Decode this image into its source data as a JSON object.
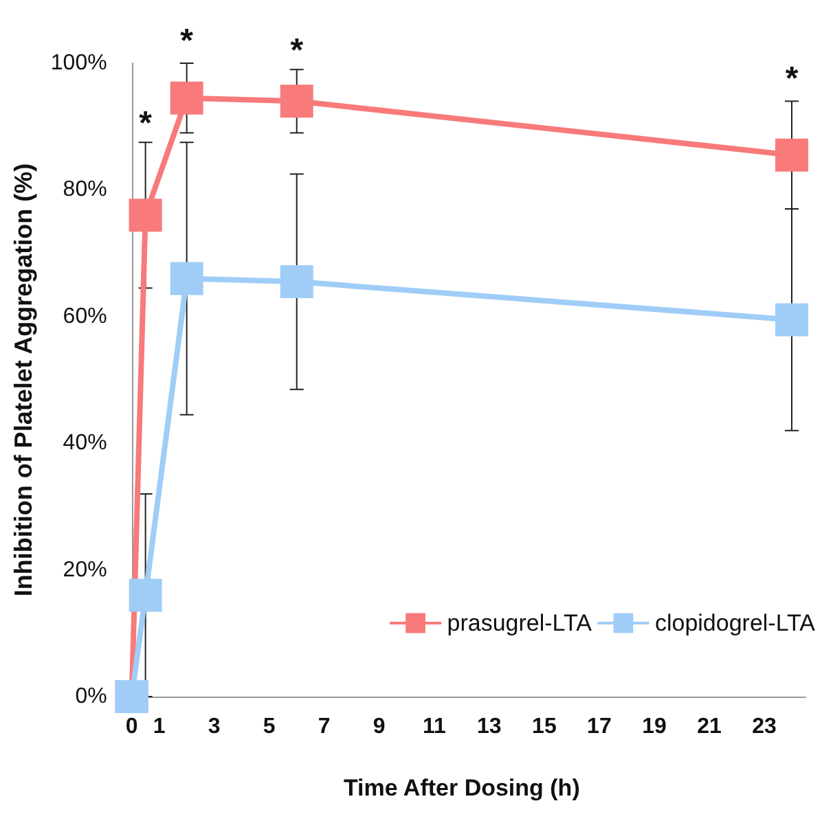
{
  "chart_data": {
    "type": "line",
    "xlabel": "Time After Dosing (h)",
    "ylabel": "Inhibition of Platelet Aggregation (%)",
    "x": [
      0,
      0.5,
      2,
      6,
      24
    ],
    "xlim": [
      -0.5,
      24.5
    ],
    "xticks": [
      0,
      1,
      3,
      5,
      7,
      9,
      11,
      13,
      15,
      17,
      19,
      21,
      23
    ],
    "ylim": [
      0,
      100
    ],
    "yticks": [
      {
        "value": 0,
        "label": "0%"
      },
      {
        "value": 20,
        "label": "20%"
      },
      {
        "value": 40,
        "label": "40%"
      },
      {
        "value": 60,
        "label": "60%"
      },
      {
        "value": 80,
        "label": "80%"
      },
      {
        "value": 100,
        "label": "100%"
      }
    ],
    "series": [
      {
        "name": "prasugrel-LTA",
        "color": "#f87a7a",
        "values": [
          0,
          76,
          94.5,
          94,
          85.5
        ],
        "errors": [
          null,
          11.5,
          5.5,
          5,
          8.5
        ]
      },
      {
        "name": "clopidogrel-LTA",
        "color": "#9fcdf7",
        "values": [
          0,
          16,
          66,
          65.5,
          59.5
        ],
        "errors": [
          null,
          16,
          21.5,
          17,
          17.5
        ]
      }
    ],
    "annotations": [
      {
        "text": "*",
        "x": 0.5,
        "y": 87
      },
      {
        "text": "*",
        "x": 2,
        "y": 100
      },
      {
        "text": "*",
        "x": 6,
        "y": 98.5
      },
      {
        "text": "*",
        "x": 24,
        "y": 94
      }
    ],
    "marker": "square",
    "line_style": "solid",
    "grid": false,
    "legend": "bottom right"
  }
}
